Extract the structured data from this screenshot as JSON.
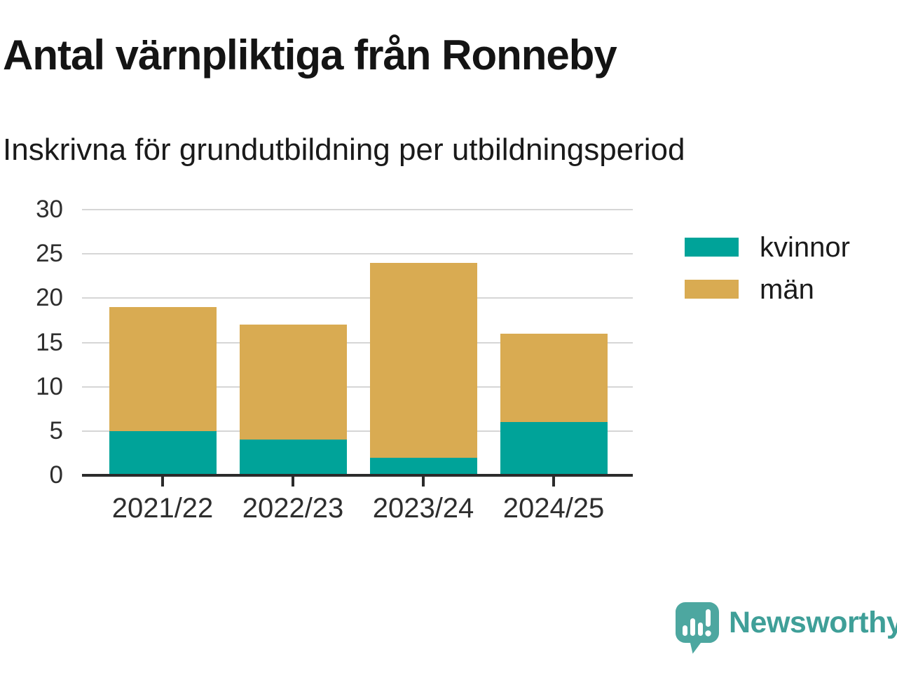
{
  "page": {
    "title": "Antal värnpliktiga från Ronneby",
    "subtitle": "Inskrivna för grundutbildning per utbildningsperiod"
  },
  "chart_data": {
    "type": "bar",
    "stacked": true,
    "title": "Antal värnpliktiga från Ronneby",
    "subtitle": "Inskrivna för grundutbildning per utbildningsperiod",
    "categories": [
      "2021/22",
      "2022/23",
      "2023/24",
      "2024/25"
    ],
    "series": [
      {
        "name": "kvinnor",
        "color": "#00a399",
        "values": [
          5,
          4,
          2,
          6
        ]
      },
      {
        "name": "män",
        "color": "#d9ab52",
        "values": [
          14,
          13,
          22,
          10
        ]
      }
    ],
    "stack_totals": [
      19,
      17,
      24,
      16
    ],
    "xlabel": "",
    "ylabel": "",
    "ylim": [
      0,
      30
    ],
    "yticks": [
      0,
      5,
      10,
      15,
      20,
      25,
      30
    ],
    "grid": true,
    "legend_position": "right-top",
    "colors": {
      "axis": "#2b2b2b",
      "gridline": "#d6d6d6",
      "tick_label": "#2e2e2e"
    }
  },
  "branding": {
    "logo_text": "Newsworthy",
    "logo_icon": "speech-bubble-bar-chart-icon",
    "logo_text_color": "#3f9f98",
    "logo_bubble_color": "#4da7a0"
  }
}
